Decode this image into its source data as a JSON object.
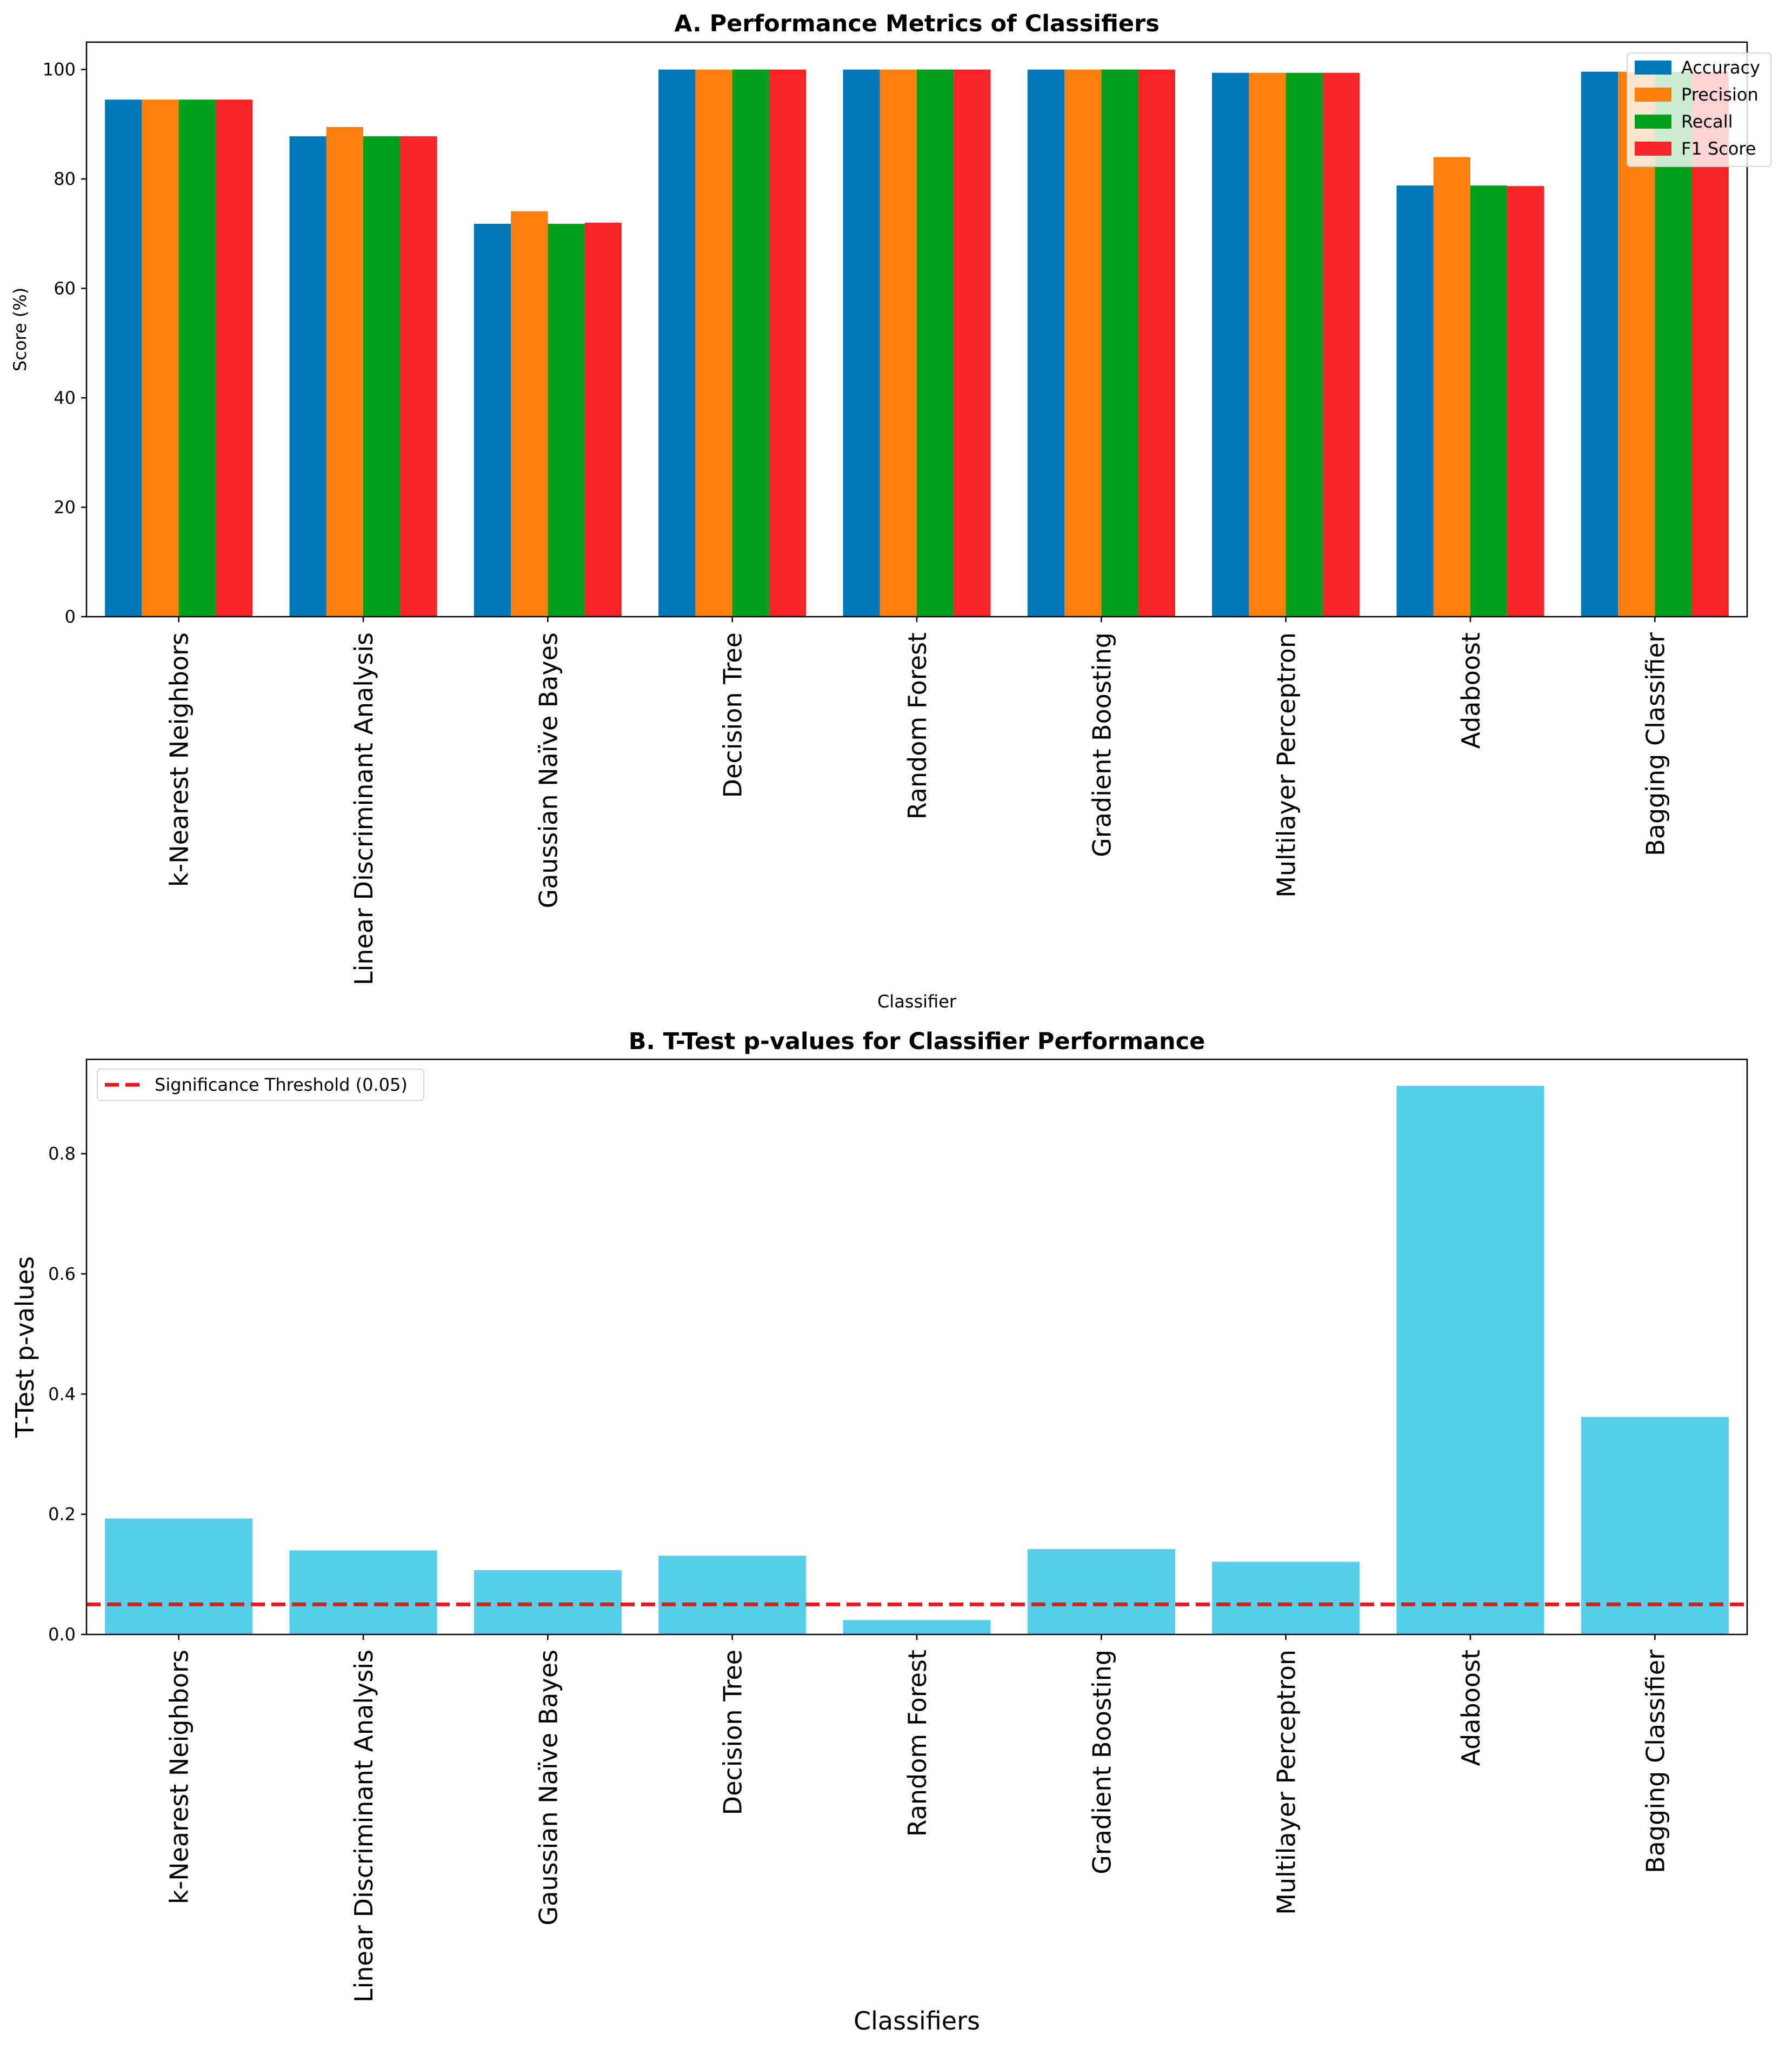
{
  "chart_data": [
    {
      "type": "bar",
      "title": "A. Performance Metrics of Classifiers",
      "xlabel": "Classifier",
      "ylabel": "Score (%)",
      "ylim": [
        0,
        105
      ],
      "yticks": [
        0,
        20,
        40,
        60,
        80,
        100
      ],
      "legend_position": "top-right",
      "categories": [
        "k-Nearest Neighbors",
        "Linear Discriminant Analysis",
        "Gaussian Naïve Bayes",
        "Decision Tree",
        "Random Forest",
        "Gradient Boosting",
        "Multilayer Perceptron",
        "Adaboost",
        "Bagging Classifier"
      ],
      "series": [
        {
          "name": "Accuracy",
          "color": "#0077b6",
          "values": [
            94.5,
            87.8,
            71.8,
            100.0,
            100.0,
            100.0,
            99.4,
            78.8,
            99.6
          ]
        },
        {
          "name": "Precision",
          "color": "#ff7f0e",
          "values": [
            94.5,
            89.5,
            74.1,
            100.0,
            100.0,
            100.0,
            99.4,
            84.0,
            99.6
          ]
        },
        {
          "name": "Recall",
          "color": "#00a01a",
          "values": [
            94.5,
            87.8,
            71.8,
            100.0,
            100.0,
            100.0,
            99.4,
            78.8,
            99.6
          ]
        },
        {
          "name": "F1 Score",
          "color": "#f52525",
          "values": [
            94.5,
            87.8,
            72.0,
            100.0,
            100.0,
            100.0,
            99.4,
            78.7,
            99.6
          ]
        }
      ]
    },
    {
      "type": "bar",
      "title": "B. T-Test p-values for Classifier Performance",
      "xlabel": "Classifiers",
      "ylabel": "T-Test p-values",
      "ylim": [
        0,
        0.957
      ],
      "yticks": [
        0.0,
        0.2,
        0.4,
        0.6,
        0.8
      ],
      "legend_position": "top-left",
      "categories": [
        "k-Nearest Neighbors",
        "Linear Discriminant Analysis",
        "Gaussian Naïve Bayes",
        "Decision Tree",
        "Random Forest",
        "Gradient Boosting",
        "Multilayer Perceptron",
        "Adaboost",
        "Bagging Classifier"
      ],
      "values": [
        0.193,
        0.14,
        0.107,
        0.131,
        0.024,
        0.142,
        0.121,
        0.913,
        0.362
      ],
      "bar_color": "#56ceec",
      "threshold": {
        "label": "Significance Threshold (0.05)",
        "value": 0.05,
        "color": "#e8191c"
      }
    }
  ]
}
